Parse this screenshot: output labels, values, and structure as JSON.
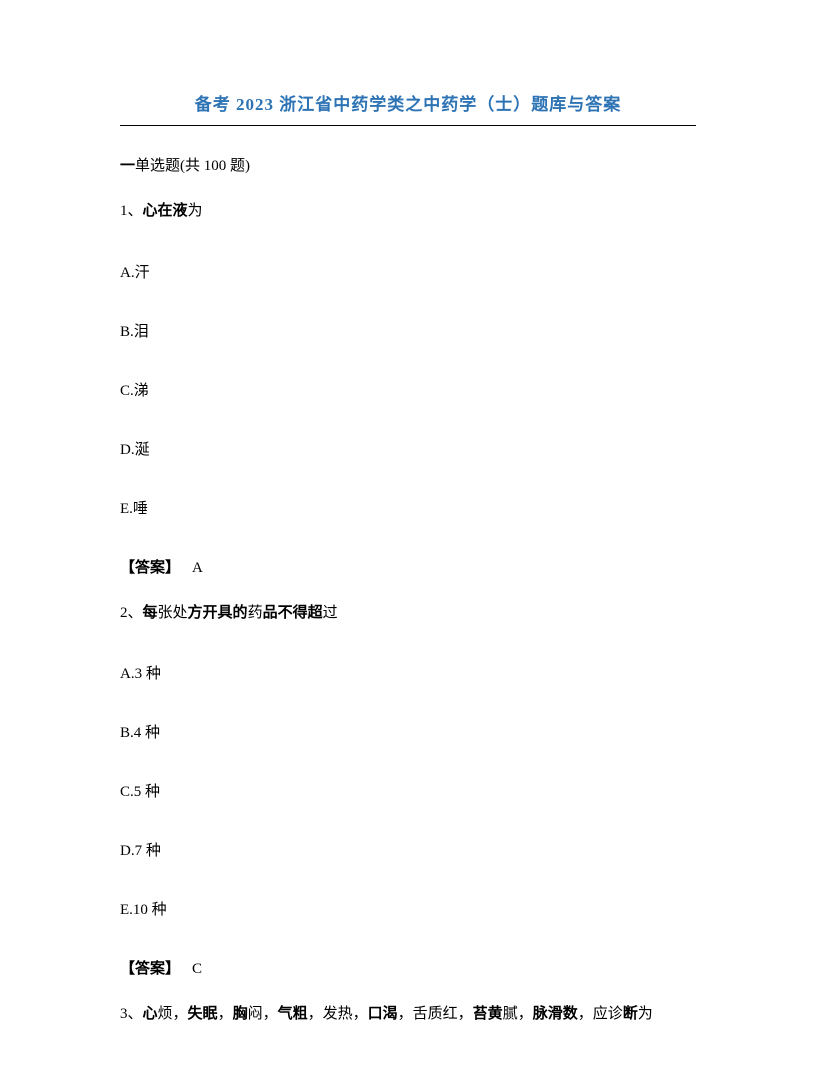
{
  "title": "备考 2023 浙江省中药学类之中药学（士）题库与答案",
  "sectionHeader": {
    "prefix": "一",
    "middle": "单选题(共 100 ",
    "suffix": "题)"
  },
  "questions": [
    {
      "number": "1、",
      "textBold1": "心在液",
      "textNormal1": "为",
      "options": [
        "A.汗",
        "B.泪",
        "C.涕",
        "D.涎",
        "E.唾"
      ],
      "answerLabel": "【答案】",
      "answerValue": "A"
    },
    {
      "number": "2、",
      "parts": [
        {
          "bold": true,
          "text": "每"
        },
        {
          "bold": false,
          "text": "张处"
        },
        {
          "bold": true,
          "text": "方开具的"
        },
        {
          "bold": false,
          "text": "药"
        },
        {
          "bold": true,
          "text": "品不得超"
        },
        {
          "bold": false,
          "text": "过"
        }
      ],
      "options": [
        "A.3 种",
        "B.4 种",
        "C.5 种",
        "D.7 种",
        "E.10 种"
      ],
      "answerLabel": "【答案】",
      "answerValue": "C"
    },
    {
      "number": "3、",
      "parts": [
        {
          "bold": true,
          "text": "心"
        },
        {
          "bold": false,
          "text": "烦，"
        },
        {
          "bold": true,
          "text": "失眠"
        },
        {
          "bold": false,
          "text": "，"
        },
        {
          "bold": true,
          "text": "胸"
        },
        {
          "bold": false,
          "text": "闷，"
        },
        {
          "bold": true,
          "text": "气粗"
        },
        {
          "bold": false,
          "text": "，发热，"
        },
        {
          "bold": true,
          "text": "口渴"
        },
        {
          "bold": false,
          "text": "，舌质红，"
        },
        {
          "bold": true,
          "text": "苔黄"
        },
        {
          "bold": false,
          "text": "腻，"
        },
        {
          "bold": true,
          "text": "脉滑数"
        },
        {
          "bold": false,
          "text": "，应诊"
        },
        {
          "bold": true,
          "text": "断"
        },
        {
          "bold": false,
          "text": "为"
        }
      ]
    }
  ]
}
